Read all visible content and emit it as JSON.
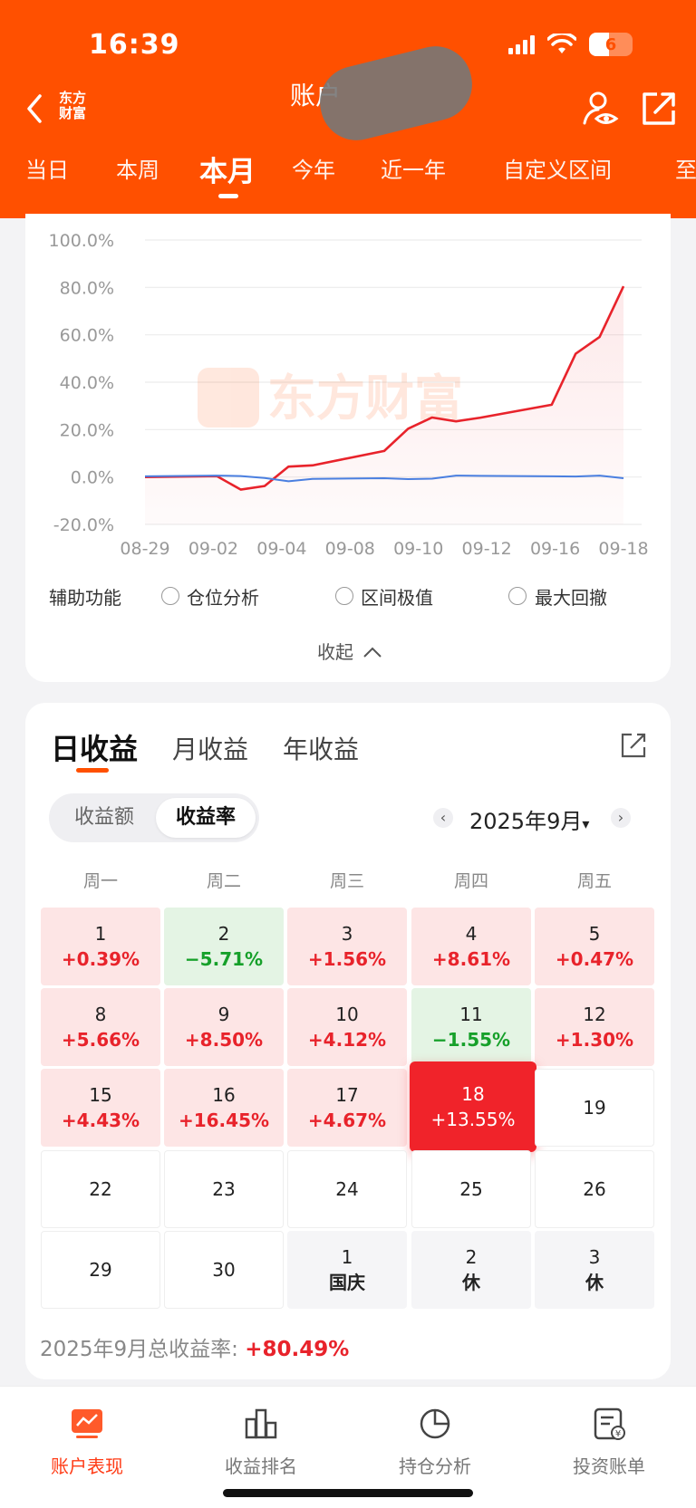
{
  "status_bar": {
    "time": "16:39",
    "battery": "6"
  },
  "header": {
    "logo_line1": "东方",
    "logo_line2": "财富",
    "title": "账户",
    "icons": [
      "back-arrow-icon",
      "user-eye-icon",
      "share-icon"
    ]
  },
  "period_tabs": [
    {
      "label": "当日"
    },
    {
      "label": "本周"
    },
    {
      "label": "本月",
      "active": true
    },
    {
      "label": "今年"
    },
    {
      "label": "近一年"
    },
    {
      "label": "自定义区间"
    },
    {
      "label": "至"
    }
  ],
  "chart": {
    "watermark": "东方财富",
    "y_ticks": [
      "100.0%",
      "80.0%",
      "60.0%",
      "40.0%",
      "20.0%",
      "0.0%",
      "-20.0%"
    ],
    "x_ticks": [
      "08-29",
      "09-02",
      "09-04",
      "09-08",
      "09-10",
      "09-12",
      "09-16",
      "09-18"
    ]
  },
  "chart_data": {
    "type": "line",
    "ylim": [
      -20,
      100
    ],
    "y_unit": "%",
    "grid": true,
    "x": [
      "08-29",
      "09-01",
      "09-02",
      "09-03",
      "09-04",
      "09-05",
      "09-08",
      "09-09",
      "09-10",
      "09-11",
      "09-12",
      "09-15",
      "09-16",
      "09-17",
      "09-18"
    ],
    "series": [
      {
        "color": "#e8232b",
        "values": [
          0.0,
          0.39,
          -5.3,
          -3.8,
          4.4,
          4.9,
          11.0,
          20.4,
          25.1,
          23.5,
          25.0,
          30.5,
          52.0,
          59.1,
          80.49
        ]
      },
      {
        "color": "#4a7fe0",
        "values": [
          0.3,
          0.6,
          0.4,
          -0.4,
          -1.8,
          -0.8,
          -0.5,
          -0.9,
          -0.7,
          0.6,
          0.5,
          0.3,
          0.2,
          0.6,
          -0.5
        ]
      }
    ]
  },
  "assist": {
    "label": "辅助功能",
    "options": [
      "仓位分析",
      "区间极值",
      "最大回撤"
    ],
    "collapse": "收起"
  },
  "returns": {
    "tabs": [
      "日收益",
      "月收益",
      "年收益"
    ],
    "segment": [
      "收益额",
      "收益率"
    ],
    "month": "2025年9月",
    "weekdays": [
      "周一",
      "周二",
      "周三",
      "周四",
      "周五"
    ],
    "rows": [
      [
        {
          "d": "1",
          "r": "+0.39%",
          "t": "pos"
        },
        {
          "d": "2",
          "r": "−5.71%",
          "t": "neg"
        },
        {
          "d": "3",
          "r": "+1.56%",
          "t": "pos"
        },
        {
          "d": "4",
          "r": "+8.61%",
          "t": "pos"
        },
        {
          "d": "5",
          "r": "+0.47%",
          "t": "pos"
        }
      ],
      [
        {
          "d": "8",
          "r": "+5.66%",
          "t": "pos"
        },
        {
          "d": "9",
          "r": "+8.50%",
          "t": "pos"
        },
        {
          "d": "10",
          "r": "+4.12%",
          "t": "pos"
        },
        {
          "d": "11",
          "r": "−1.55%",
          "t": "neg"
        },
        {
          "d": "12",
          "r": "+1.30%",
          "t": "pos"
        }
      ],
      [
        {
          "d": "15",
          "r": "+4.43%",
          "t": "pos"
        },
        {
          "d": "16",
          "r": "+16.45%",
          "t": "pos"
        },
        {
          "d": "17",
          "r": "+4.67%",
          "t": "pos"
        },
        {
          "d": "18",
          "r": "+13.55%",
          "t": "today"
        },
        {
          "d": "19",
          "r": "",
          "t": "empty"
        }
      ],
      [
        {
          "d": "22",
          "r": "",
          "t": "empty"
        },
        {
          "d": "23",
          "r": "",
          "t": "empty"
        },
        {
          "d": "24",
          "r": "",
          "t": "empty"
        },
        {
          "d": "25",
          "r": "",
          "t": "empty"
        },
        {
          "d": "26",
          "r": "",
          "t": "empty"
        }
      ],
      [
        {
          "d": "29",
          "r": "",
          "t": "empty"
        },
        {
          "d": "30",
          "r": "",
          "t": "empty"
        },
        {
          "d": "1",
          "r": "国庆",
          "t": "next"
        },
        {
          "d": "2",
          "r": "休",
          "t": "next"
        },
        {
          "d": "3",
          "r": "休",
          "t": "next"
        }
      ]
    ],
    "total_label": "2025年9月总收益率: ",
    "total_value": "+80.49%"
  },
  "bottom_nav": [
    {
      "label": "账户表现",
      "icon": "chart-screen-icon",
      "active": true
    },
    {
      "label": "收益排名",
      "icon": "bar-ranking-icon"
    },
    {
      "label": "持仓分析",
      "icon": "pie-chart-icon"
    },
    {
      "label": "投资账单",
      "icon": "bill-icon"
    }
  ]
}
